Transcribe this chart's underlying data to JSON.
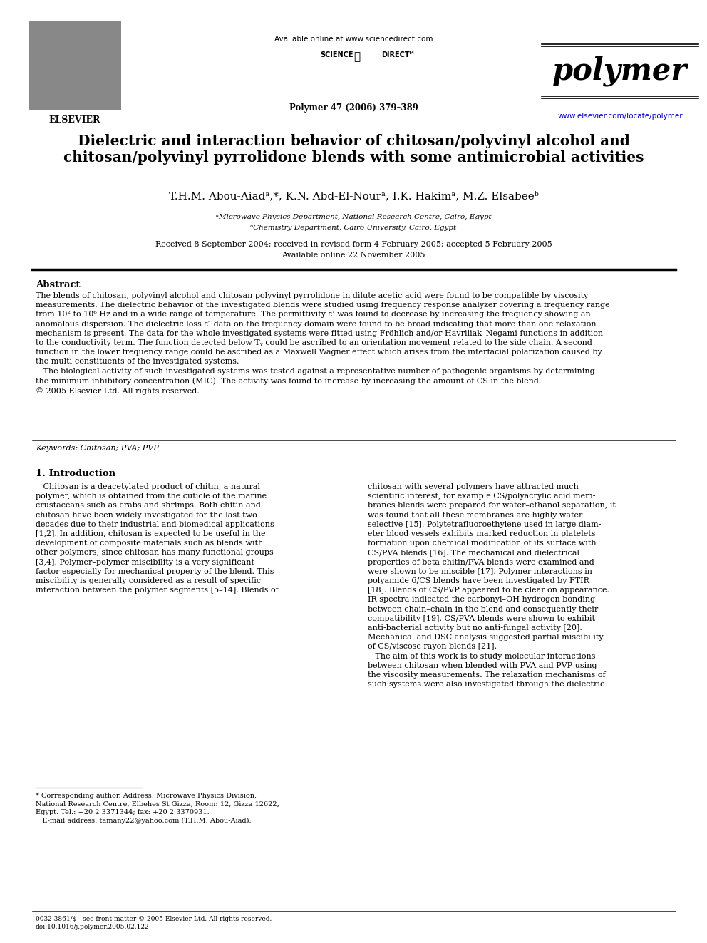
{
  "bg_color": "#ffffff",
  "page_width": 9.92,
  "page_height": 13.23,
  "header": {
    "available_online": "Available online at www.sciencedirect.com",
    "journal_name": "polymer",
    "journal_ref": "Polymer 47 (2006) 379–389",
    "journal_url": "www.elsevier.com/locate/polymer"
  },
  "title": "Dielectric and interaction behavior of chitosan/polyvinyl alcohol and\nchitosan/polyvinyl pyrrolidone blends with some antimicrobial activities",
  "authors": "T.H.M. Abou-Aiadᵃ,*, K.N. Abd-El-Nourᵃ, I.K. Hakimᵃ, M.Z. Elsabeeᵇ",
  "affil_a": "ᵃMicrowave Physics Department, National Research Centre, Cairo, Egypt",
  "affil_b": "ᵇChemistry Department, Cairo University, Cairo, Egypt",
  "dates": "Received 8 September 2004; received in revised form 4 February 2005; accepted 5 February 2005",
  "available_online_date": "Available online 22 November 2005",
  "abstract_title": "Abstract",
  "abstract_text": "The blends of chitosan, polyvinyl alcohol and chitosan polyvinyl pyrrolidone in dilute acetic acid were found to be compatible by viscosity\nmeasurements. The dielectric behavior of the investigated blends were studied using frequency response analyzer covering a frequency range\nfrom 10² to 10⁶ Hz and in a wide range of temperature. The permittivity ε’ was found to decrease by increasing the frequency showing an\nanomalous dispersion. The dielectric loss ε″ data on the frequency domain were found to be broad indicating that more than one relaxation\nmechanism is present. The data for the whole investigated systems were fitted using Fröhlich and/or Havriliak–Negami functions in addition\nto the conductivity term. The function detected below Tᵧ could be ascribed to an orientation movement related to the side chain. A second\nfunction in the lower frequency range could be ascribed as a Maxwell Wagner effect which arises from the interfacial polarization caused by\nthe multi-constituents of the investigated systems.\n   The biological activity of such investigated systems was tested against a representative number of pathogenic organisms by determining\nthe minimum inhibitory concentration (MIC). The activity was found to increase by increasing the amount of CS in the blend.\n© 2005 Elsevier Ltd. All rights reserved.",
  "keywords": "Keywords: Chitosan; PVA; PVP",
  "section1_title": "1. Introduction",
  "section1_col1": "   Chitosan is a deacetylated product of chitin, a natural\npolymer, which is obtained from the cuticle of the marine\ncrustaceans such as crabs and shrimps. Both chitin and\nchitosan have been widely investigated for the last two\ndecades due to their industrial and biomedical applications\n[1,2]. In addition, chitosan is expected to be useful in the\ndevelopment of composite materials such as blends with\nother polymers, since chitosan has many functional groups\n[3,4]. Polymer–polymer miscibility is a very significant\nfactor especially for mechanical property of the blend. This\nmiscibility is generally considered as a result of specific\ninteraction between the polymer segments [5–14]. Blends of",
  "section1_col2": "chitosan with several polymers have attracted much\nscientific interest, for example CS/polyacrylic acid mem-\nbranes blends were prepared for water–ethanol separation, it\nwas found that all these membranes are highly water-\nselective [15]. Polytetrafluoroethylene used in large diam-\neter blood vessels exhibits marked reduction in platelets\nformation upon chemical modification of its surface with\nCS/PVA blends [16]. The mechanical and dielectrical\nproperties of beta chitin/PVA blends were examined and\nwere shown to be miscible [17]. Polymer interactions in\npolyamide 6/CS blends have been investigated by FTIR\n[18]. Blends of CS/PVP appeared to be clear on appearance.\nIR spectra indicated the carbonyl–OH hydrogen bonding\nbetween chain–chain in the blend and consequently their\ncompatibility [19]. CS/PVA blends were shown to exhibit\nanti-bacterial activity but no anti-fungal activity [20].\nMechanical and DSC analysis suggested partial miscibility\nof CS/viscose rayon blends [21].\n   The aim of this work is to study molecular interactions\nbetween chitosan when blended with PVA and PVP using\nthe viscosity measurements. The relaxation mechanisms of\nsuch systems were also investigated through the dielectric",
  "footnote_marker": "* Corresponding author. Address: Microwave Physics Division,\nNational Research Centre, Elbehes St Gizza, Room: 12, Gizza 12622,\nEgypt. Tel.: +20 2 3371344; fax: +20 2 3370931.\n   E-mail address: tamany22@yahoo.com (T.H.M. Abou-Aiad).",
  "footer_left": "0032-3861/$ - see front matter © 2005 Elsevier Ltd. All rights reserved.\ndoi:10.1016/j.polymer.2005.02.122"
}
